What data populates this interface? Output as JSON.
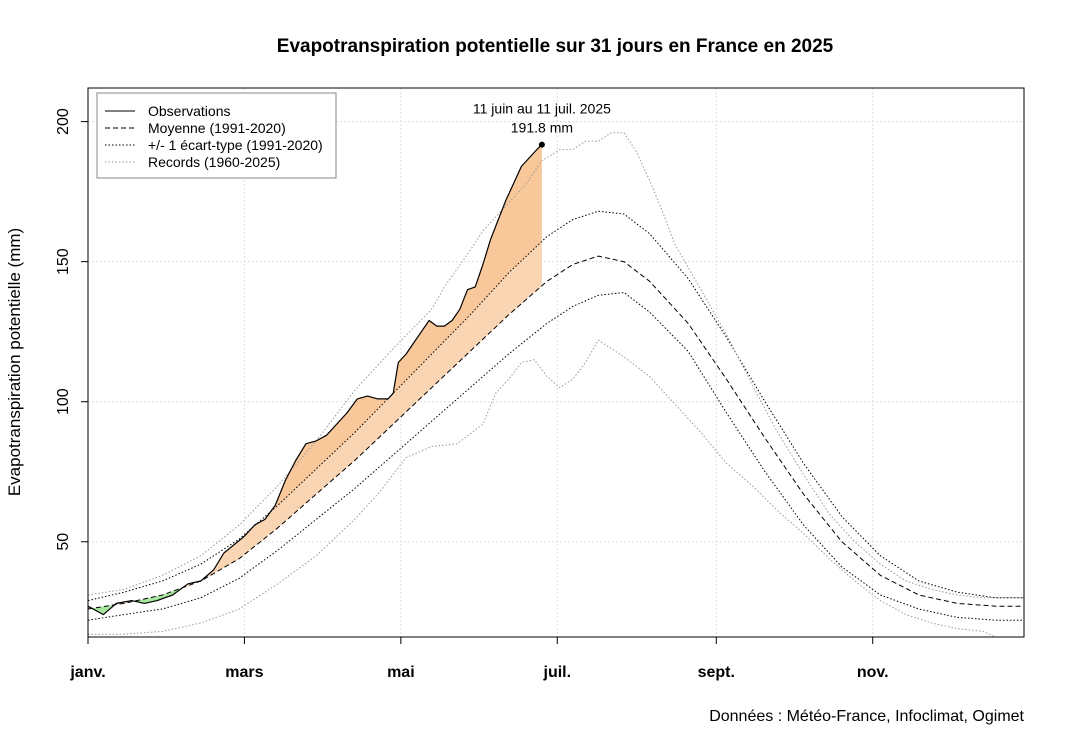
{
  "chart_data": {
    "type": "line",
    "title": "Evapotranspiration potentielle sur 31 jours en France en 2025",
    "ylabel": "Evapotranspiration potentielle (mm)",
    "source": "Données : Météo-France, Infoclimat, Ogimet",
    "xlim": [
      1,
      366
    ],
    "ylim": [
      16,
      212
    ],
    "y_ticks": [
      50,
      100,
      150,
      200
    ],
    "x_ticks": [
      {
        "day": 1,
        "label": "janv."
      },
      {
        "day": 62,
        "label": "mars"
      },
      {
        "day": 123,
        "label": "mai"
      },
      {
        "day": 184,
        "label": "juil."
      },
      {
        "day": 246,
        "label": "sept."
      },
      {
        "day": 307,
        "label": "nov."
      }
    ],
    "grid": true,
    "legend_position": "top-left",
    "legend": [
      {
        "label": "Observations",
        "style": "solid"
      },
      {
        "label": "Moyenne (1991-2020)",
        "style": "dashed"
      },
      {
        "label": "+/- 1 écart-type (1991-2020)",
        "style": "dotted"
      },
      {
        "label": "Records (1960-2025)",
        "style": "dotted-grey"
      }
    ],
    "annotation": {
      "day": 178,
      "value": 191.8,
      "line1": "11 juin au 11 juil. 2025",
      "line2": "191.8 mm"
    },
    "colors": {
      "above_mean": "#f9c89a",
      "above_mean_light": "#fce0c8",
      "below_mean": "#a8e6a0",
      "grid": "#dddddd",
      "records": "#999999"
    },
    "series": [
      {
        "name": "Moyenne (1991-2020)",
        "style": "dashed",
        "x": [
          1,
          15,
          30,
          45,
          60,
          75,
          90,
          105,
          120,
          135,
          150,
          165,
          180,
          190,
          200,
          210,
          220,
          235,
          250,
          265,
          280,
          295,
          310,
          325,
          340,
          355,
          366
        ],
        "y": [
          26,
          28,
          31,
          36,
          44,
          55,
          67,
          79,
          92,
          105,
          118,
          131,
          143,
          149,
          152,
          150,
          143,
          128,
          108,
          87,
          67,
          50,
          38,
          31,
          28,
          27,
          27
        ]
      },
      {
        "name": "+1 écart-type",
        "style": "dotted",
        "x": [
          1,
          15,
          30,
          45,
          60,
          75,
          90,
          105,
          120,
          135,
          150,
          165,
          180,
          190,
          200,
          210,
          220,
          235,
          250,
          265,
          280,
          295,
          310,
          325,
          340,
          355,
          366
        ],
        "y": [
          29,
          32,
          36,
          42,
          51,
          63,
          76,
          89,
          103,
          117,
          131,
          146,
          159,
          165,
          168,
          167,
          160,
          144,
          123,
          100,
          78,
          59,
          45,
          36,
          32,
          30,
          30
        ]
      },
      {
        "name": "-1 écart-type",
        "style": "dotted",
        "x": [
          1,
          15,
          30,
          45,
          60,
          75,
          90,
          105,
          120,
          135,
          150,
          165,
          180,
          190,
          200,
          210,
          220,
          235,
          250,
          265,
          280,
          295,
          310,
          325,
          340,
          355,
          366
        ],
        "y": [
          22,
          24,
          26,
          30,
          37,
          47,
          58,
          69,
          81,
          93,
          105,
          117,
          128,
          134,
          138,
          139,
          132,
          118,
          96,
          75,
          56,
          41,
          31,
          26,
          23,
          22,
          22
        ]
      },
      {
        "name": "Record haut",
        "style": "grey-dotted",
        "x": [
          1,
          15,
          30,
          45,
          60,
          75,
          90,
          105,
          120,
          135,
          140,
          150,
          155,
          165,
          172,
          178,
          185,
          190,
          195,
          200,
          205,
          210,
          215,
          220,
          225,
          230,
          240,
          250,
          260,
          270,
          280,
          290,
          300,
          310,
          320,
          330,
          340,
          350,
          360,
          366
        ],
        "y": [
          31,
          33,
          38,
          45,
          56,
          70,
          86,
          104,
          119,
          133,
          141,
          154,
          161,
          171,
          178,
          186,
          190,
          190,
          193,
          193,
          196,
          196,
          189,
          179,
          168,
          156,
          140,
          124,
          106,
          89,
          74,
          60,
          50,
          42,
          36,
          33,
          31,
          30,
          30,
          30
        ]
      },
      {
        "name": "Record bas",
        "style": "grey-dotted",
        "x": [
          1,
          15,
          30,
          45,
          60,
          75,
          90,
          105,
          115,
          125,
          135,
          145,
          155,
          160,
          165,
          170,
          175,
          180,
          185,
          190,
          195,
          200,
          205,
          210,
          220,
          230,
          240,
          250,
          260,
          270,
          280,
          290,
          300,
          310,
          320,
          330,
          340,
          350,
          355,
          366
        ],
        "y": [
          17,
          17,
          18,
          21,
          26,
          35,
          45,
          58,
          68,
          80,
          84,
          85,
          92,
          103,
          108,
          114,
          115,
          109,
          105,
          108,
          114,
          122,
          119,
          116,
          109,
          99,
          89,
          78,
          70,
          61,
          53,
          44,
          36,
          29,
          24,
          21,
          19,
          18,
          16,
          16
        ]
      },
      {
        "name": "Observations",
        "style": "solid",
        "x": [
          1,
          7,
          12,
          18,
          23,
          28,
          34,
          40,
          45,
          50,
          54,
          58,
          62,
          66,
          70,
          74,
          78,
          82,
          86,
          90,
          94,
          98,
          102,
          106,
          110,
          114,
          118,
          120,
          122,
          125,
          128,
          131,
          134,
          137,
          140,
          143,
          146,
          149,
          152,
          155,
          158,
          161,
          164,
          167,
          170,
          173,
          176,
          178
        ],
        "y": [
          27,
          24,
          28,
          29,
          28,
          29,
          31,
          35,
          36,
          40,
          46,
          49,
          52,
          56,
          58,
          63,
          72,
          79,
          85,
          86,
          88,
          92,
          96,
          101,
          102,
          101,
          101,
          103,
          114,
          117,
          121,
          125,
          129,
          127,
          127,
          129,
          133,
          140,
          141,
          149,
          158,
          165,
          172,
          178,
          184,
          187,
          190,
          191.8
        ]
      }
    ]
  }
}
